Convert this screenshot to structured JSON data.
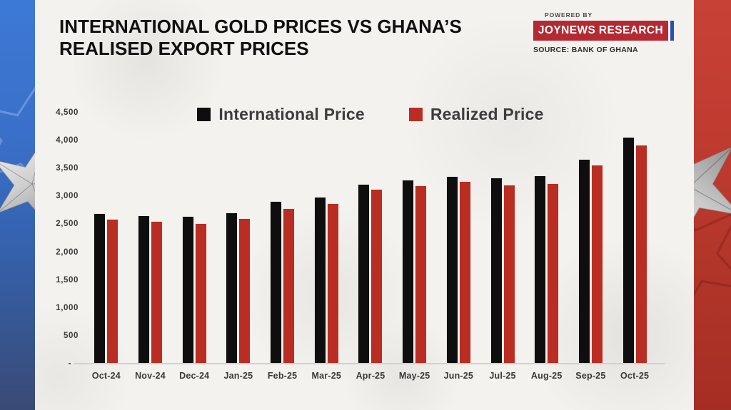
{
  "header": {
    "title_line1": "INTERNATIONAL GOLD PRICES VS GHANA’S",
    "title_line2": "REALISED EXPORT PRICES",
    "powered_by": "POWERED BY",
    "brand": "JOYNEWS RESEARCH",
    "source": "SOURCE: BANK OF GHANA"
  },
  "legend": [
    {
      "label": "International Price",
      "color": "#0e0e0e"
    },
    {
      "label": "Realized Price",
      "color": "#b92d22"
    }
  ],
  "chart_data": {
    "type": "bar",
    "title": "INTERNATIONAL GOLD PRICES VS GHANA’S REALISED EXPORT PRICES",
    "categories": [
      "Oct-24",
      "Nov-24",
      "Dec-24",
      "Jan-25",
      "Feb-25",
      "Mar-25",
      "Apr-25",
      "May-25",
      "Jun-25",
      "Jul-25",
      "Aug-25",
      "Sep-25",
      "Oct-25"
    ],
    "series": [
      {
        "name": "International Price",
        "color": "#0e0e0e",
        "values": [
          2690,
          2650,
          2630,
          2700,
          2900,
          2980,
          3210,
          3290,
          3350,
          3330,
          3360,
          3650,
          4050
        ]
      },
      {
        "name": "Realized Price",
        "color": "#b92d22",
        "values": [
          2580,
          2540,
          2510,
          2600,
          2780,
          2860,
          3120,
          3180,
          3260,
          3200,
          3220,
          3550,
          3910
        ]
      }
    ],
    "xlabel": "",
    "ylabel": "",
    "ylim": [
      0,
      4500
    ],
    "yticks": [
      {
        "label": "4,500",
        "value": 4500
      },
      {
        "label": "4,000",
        "value": 4000
      },
      {
        "label": "3,500",
        "value": 3500
      },
      {
        "label": "3,000",
        "value": 3000
      },
      {
        "label": "2,500",
        "value": 2500
      },
      {
        "label": "2,000",
        "value": 2000
      },
      {
        "label": "1,500",
        "value": 1500
      },
      {
        "label": "1,000",
        "value": 1000
      },
      {
        "label": "500",
        "value": 500
      },
      {
        "label": "-",
        "value": 0
      }
    ],
    "grid": false,
    "legend_position": "top"
  },
  "colors": {
    "badge_red": "#b52a32",
    "badge_blue": "#2850b4",
    "band_blue_top": "#3c79d6",
    "band_blue_bottom": "#3a4a75",
    "band_red_top": "#c84136",
    "band_red_bottom": "#a52e24",
    "paper": "#f3f2ef"
  }
}
